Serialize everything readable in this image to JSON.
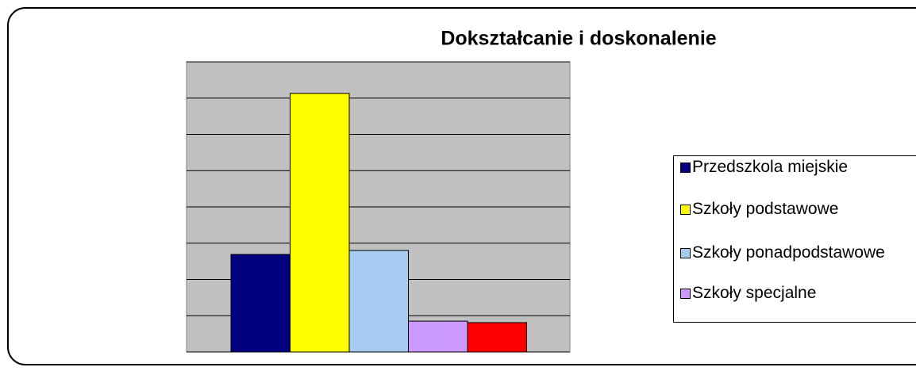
{
  "chart_data": {
    "type": "bar",
    "title": "Dokształcanie i doskonalenie",
    "series": [
      {
        "name": "Przedszkola miejskie",
        "color": "#000080",
        "values": [
          2.69
        ]
      },
      {
        "name": "Szkoły podstawowe",
        "color": "#ffff00",
        "values": [
          7.13
        ]
      },
      {
        "name": "Szkoły ponadpodstawowe",
        "color": "#a6caf0",
        "values": [
          2.8
        ]
      },
      {
        "name": "Szkoły specjalne",
        "color": "#cc99ff",
        "values": [
          0.85
        ]
      },
      {
        "name": null,
        "color": "#ff0000",
        "values": [
          0.81
        ]
      }
    ],
    "ylim": [
      0,
      8
    ],
    "yticks": [
      0,
      1,
      2,
      3,
      4,
      5,
      6,
      7,
      8
    ],
    "grid": true,
    "plot_background": "#c0c0c0",
    "legend": "right"
  }
}
